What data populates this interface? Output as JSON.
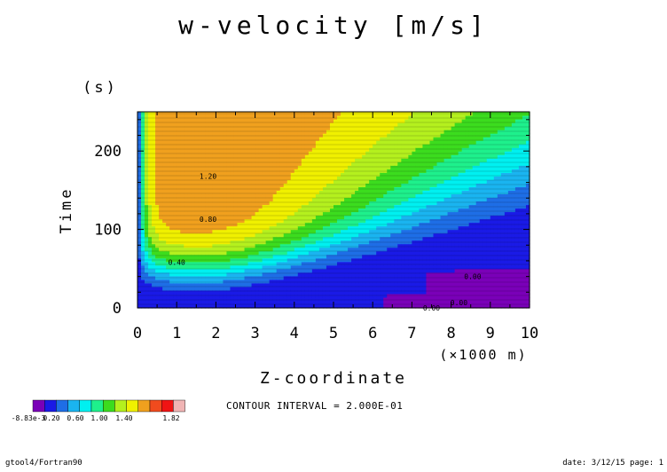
{
  "chart_data": {
    "type": "contour",
    "title": "w-velocity [m/s]",
    "xlabel": "Z-coordinate",
    "xunit": "(×1000 m)",
    "ylabel": "Time",
    "yunit": "(s)",
    "xlim": [
      0,
      10
    ],
    "ylim": [
      0,
      250
    ],
    "x_ticks": [
      0,
      1,
      2,
      3,
      4,
      5,
      6,
      7,
      8,
      9,
      10
    ],
    "x_tick_labels": [
      "0",
      "1",
      "2",
      "3",
      "4",
      "5",
      "6",
      "7",
      "8",
      "9",
      "10"
    ],
    "y_ticks": [
      0,
      100,
      200
    ],
    "y_tick_labels": [
      "0",
      "100",
      "200"
    ],
    "contour_levels": [
      0,
      0.2,
      0.4,
      0.6,
      0.8,
      1.0,
      1.2,
      1.4,
      1.6
    ],
    "contour_labels": [
      {
        "text": "0.40",
        "x": 1.0,
        "y": 58
      },
      {
        "text": "0.80",
        "x": 1.8,
        "y": 113
      },
      {
        "text": "1.20",
        "x": 1.8,
        "y": 168
      },
      {
        "text": "0.00",
        "x": 8.55,
        "y": 40
      },
      {
        "text": "0.00",
        "x": 8.2,
        "y": 7
      },
      {
        "text": "0.00",
        "x": 7.5,
        "y": 0
      }
    ],
    "contour_interval_text": "CONTOUR INTERVAL = 2.000E-01",
    "colorbar": {
      "colors": [
        "#7a00b8",
        "#1a1ae6",
        "#1e6ee6",
        "#1ab4f0",
        "#00f0f0",
        "#1ef08c",
        "#3cdc1e",
        "#b4f01e",
        "#f0f000",
        "#f0a01e",
        "#f04b1e",
        "#f01414",
        "#f0b4b4"
      ],
      "labels": [
        "-8.83e-3",
        "0.20",
        "0.60",
        "1.00",
        "1.40",
        "1.82"
      ]
    }
  },
  "footer": {
    "left": "gtool4/Fortran90",
    "right": "date: 3/12/15 page: 1"
  }
}
